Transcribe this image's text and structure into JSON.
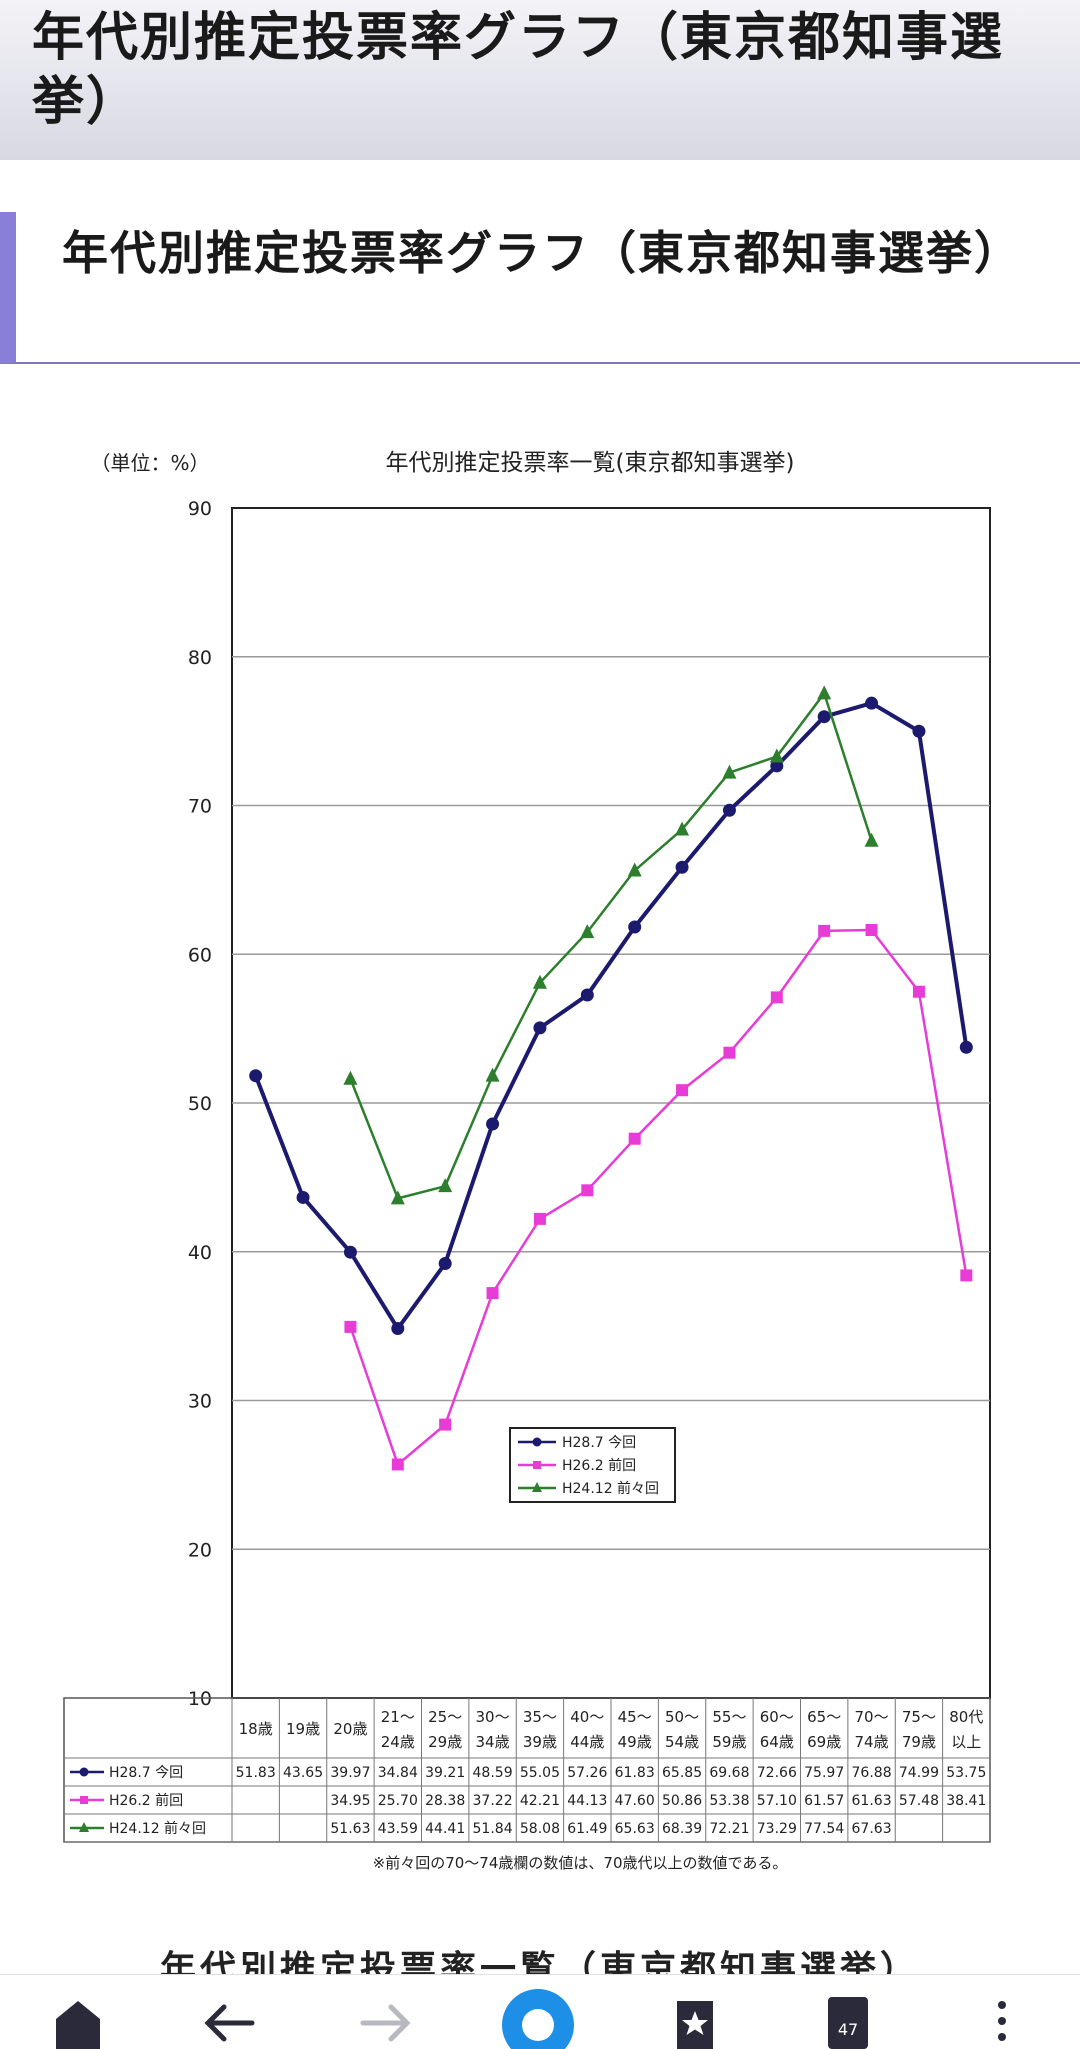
{
  "header": {
    "title": "年代別推定投票率グラフ（東京都知事選挙）"
  },
  "section": {
    "heading": "年代別推定投票率グラフ（東京都知事選挙）"
  },
  "chart_data": {
    "type": "line",
    "title": "年代別推定投票率一覧(東京都知事選挙)",
    "unit_label": "（単位：%）",
    "ylim": [
      10,
      90
    ],
    "yticks": [
      10,
      20,
      30,
      40,
      50,
      60,
      70,
      80,
      90
    ],
    "grid": true,
    "legend_position": "center-left",
    "categories": [
      [
        "18歳"
      ],
      [
        "19歳"
      ],
      [
        "20歳"
      ],
      [
        "21～",
        "24歳"
      ],
      [
        "25～",
        "29歳"
      ],
      [
        "30～",
        "34歳"
      ],
      [
        "35～",
        "39歳"
      ],
      [
        "40～",
        "44歳"
      ],
      [
        "45～",
        "49歳"
      ],
      [
        "50～",
        "54歳"
      ],
      [
        "55～",
        "59歳"
      ],
      [
        "60～",
        "64歳"
      ],
      [
        "65～",
        "69歳"
      ],
      [
        "70～",
        "74歳"
      ],
      [
        "75～",
        "79歳"
      ],
      [
        "80代",
        "以上"
      ]
    ],
    "series": [
      {
        "name": "H28.7 今回",
        "color": "#1c1a6e",
        "marker": "circle",
        "values": [
          51.83,
          43.65,
          39.97,
          34.84,
          39.21,
          48.59,
          55.05,
          57.26,
          61.83,
          65.85,
          69.68,
          72.66,
          75.97,
          76.88,
          74.99,
          53.75
        ]
      },
      {
        "name": "H26.2 前回",
        "color": "#e83cd6",
        "marker": "square",
        "values": [
          null,
          null,
          34.95,
          25.7,
          28.38,
          37.22,
          42.21,
          44.13,
          47.6,
          50.86,
          53.38,
          57.1,
          61.57,
          61.63,
          57.48,
          38.41
        ]
      },
      {
        "name": "H24.12 前々回",
        "color": "#2d7f2d",
        "marker": "triangle",
        "values": [
          null,
          null,
          51.63,
          43.59,
          44.41,
          51.84,
          58.08,
          61.49,
          65.63,
          68.39,
          72.21,
          73.29,
          77.54,
          67.63,
          null,
          null
        ]
      }
    ],
    "footnote": "※前々回の70～74歳欄の数値は、70歳代以上の数値である。"
  },
  "next_caption": "年代別推定投票率一覧（東京都知事選挙）",
  "nav": {
    "icons": [
      "home-icon",
      "back-arrow-icon",
      "forward-arrow-icon",
      "search-circle-icon",
      "bookmark-star-icon",
      "tabs-icon",
      "more-menu-icon"
    ],
    "tab_count": "47"
  }
}
